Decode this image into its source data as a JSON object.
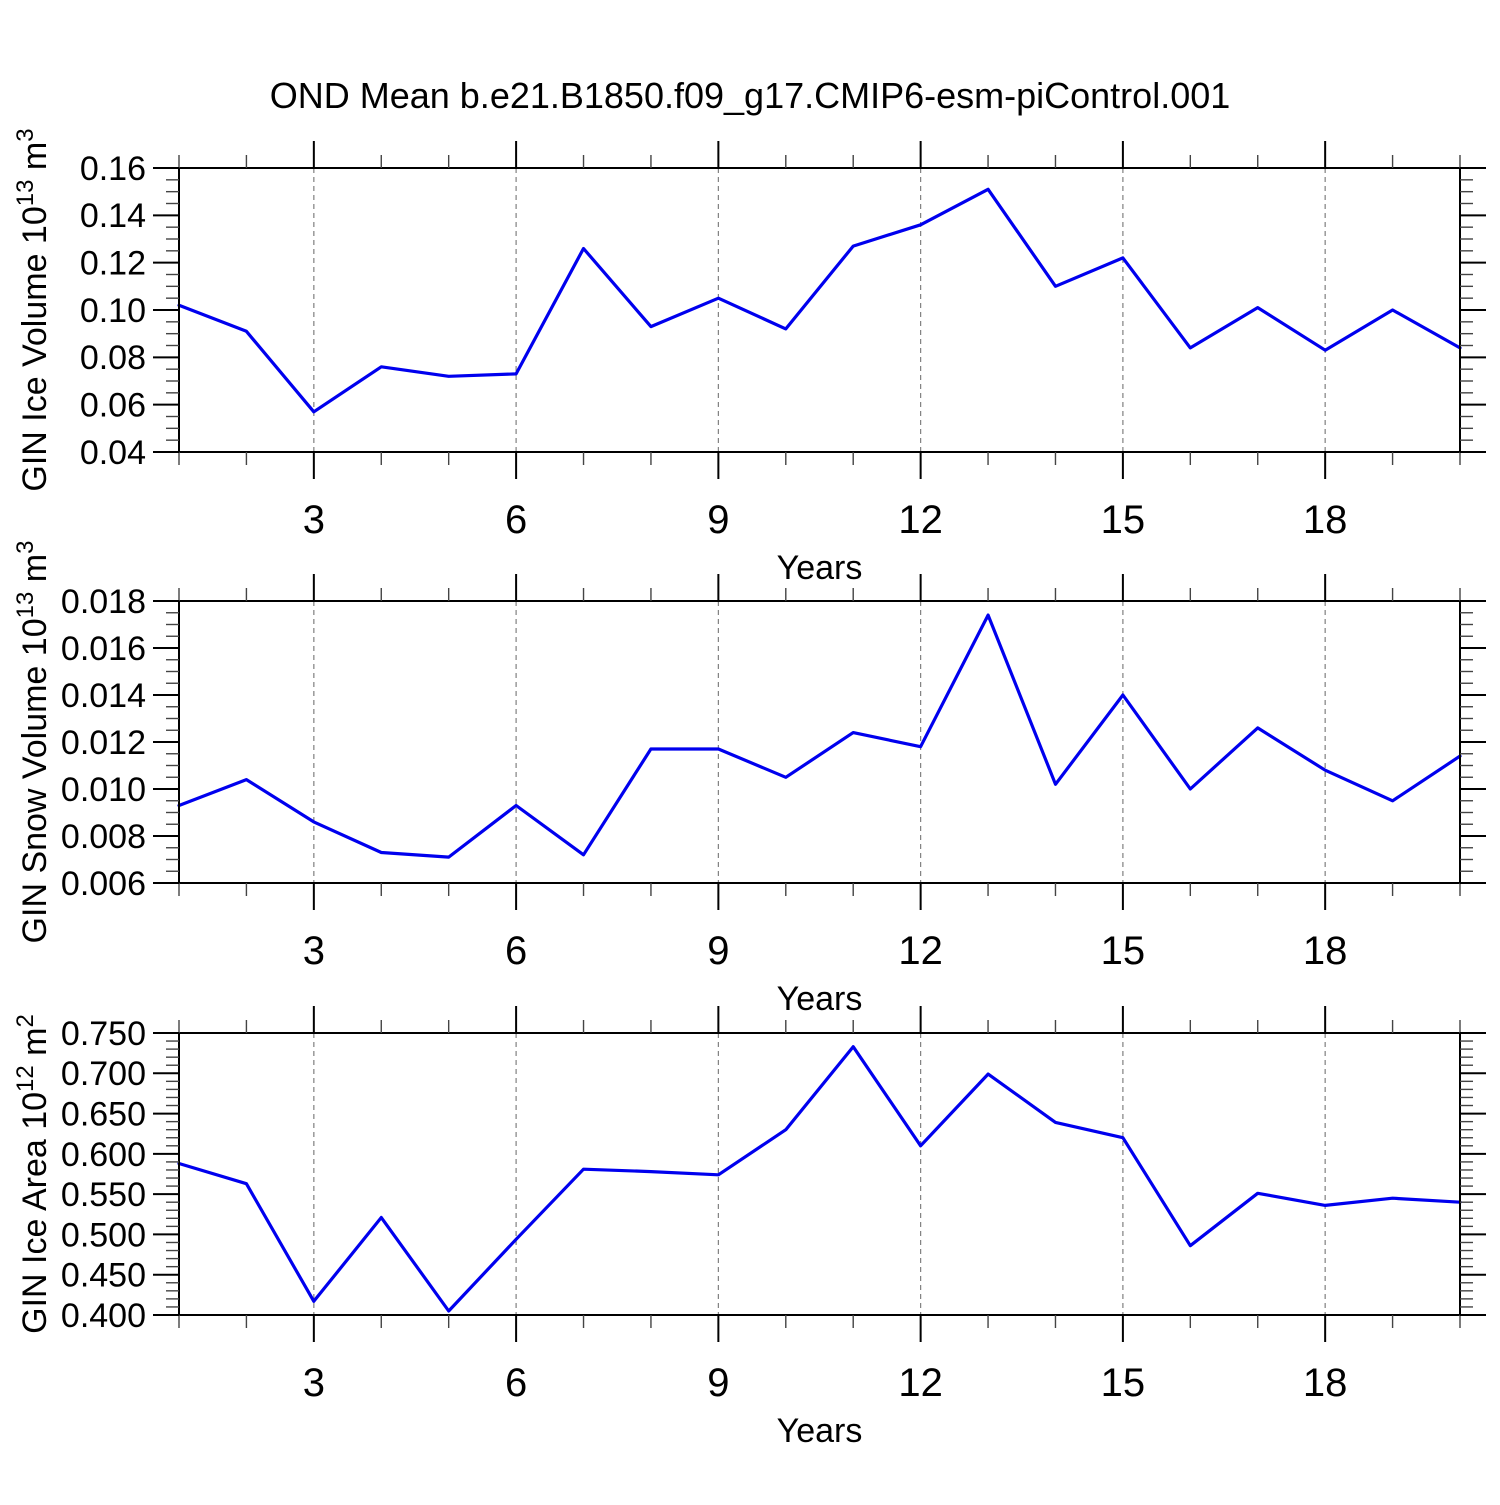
{
  "title": "OND Mean b.e21.B1850.f09_g17.CMIP6-esm-piControl.001",
  "style": {
    "line_color": "#0000ee",
    "grid_color": "#808080",
    "axis_color": "#000000",
    "minor_tick_color": "#444444",
    "background": "#ffffff"
  },
  "chart_data": [
    {
      "type": "line",
      "series_name": "GIN Ice Volume",
      "xlabel": "Years",
      "ylabel": "GIN Ice Volume 10^13 m^3",
      "ylabel_parts": [
        {
          "text": "GIN Ice Volume 10"
        },
        {
          "text": "13",
          "sup": true
        },
        {
          "text": " m"
        },
        {
          "text": "3",
          "sup": true
        }
      ],
      "x": [
        1,
        2,
        3,
        4,
        5,
        6,
        7,
        8,
        9,
        10,
        11,
        12,
        13,
        14,
        15,
        16,
        17,
        18,
        19,
        20
      ],
      "values": [
        0.102,
        0.091,
        0.057,
        0.076,
        0.072,
        0.073,
        0.126,
        0.093,
        0.105,
        0.092,
        0.127,
        0.136,
        0.151,
        0.11,
        0.122,
        0.084,
        0.101,
        0.083,
        0.1,
        0.084
      ],
      "xlim": [
        1,
        20
      ],
      "ylim": [
        0.04,
        0.16
      ],
      "ytick_step": 0.02,
      "yminor_step": 0.005,
      "yticks": [
        {
          "v": 0.16,
          "label": "0.16"
        },
        {
          "v": 0.14,
          "label": "0.14"
        },
        {
          "v": 0.12,
          "label": "0.12"
        },
        {
          "v": 0.1,
          "label": "0.10"
        },
        {
          "v": 0.08,
          "label": "0.08"
        },
        {
          "v": 0.06,
          "label": "0.06"
        },
        {
          "v": 0.04,
          "label": "0.04"
        }
      ],
      "xticks": [
        {
          "v": 3,
          "label": "3"
        },
        {
          "v": 6,
          "label": "6"
        },
        {
          "v": 9,
          "label": "9"
        },
        {
          "v": 12,
          "label": "12"
        },
        {
          "v": 15,
          "label": "15"
        },
        {
          "v": 18,
          "label": "18"
        }
      ],
      "xminor_step": 1,
      "grid": "vertical-dashed-at-major",
      "legend": "none"
    },
    {
      "type": "line",
      "series_name": "GIN Snow Volume",
      "xlabel": "Years",
      "ylabel": "GIN Snow Volume 10^13 m^3",
      "ylabel_parts": [
        {
          "text": "GIN Snow Volume 10"
        },
        {
          "text": "13",
          "sup": true
        },
        {
          "text": " m"
        },
        {
          "text": "3",
          "sup": true
        }
      ],
      "x": [
        1,
        2,
        3,
        4,
        5,
        6,
        7,
        8,
        9,
        10,
        11,
        12,
        13,
        14,
        15,
        16,
        17,
        18,
        19,
        20
      ],
      "values": [
        0.0093,
        0.0104,
        0.0086,
        0.0073,
        0.0071,
        0.0093,
        0.0072,
        0.0117,
        0.0117,
        0.0105,
        0.0124,
        0.0118,
        0.0174,
        0.0102,
        0.014,
        0.01,
        0.0126,
        0.0108,
        0.0095,
        0.0114
      ],
      "xlim": [
        1,
        20
      ],
      "ylim": [
        0.006,
        0.018
      ],
      "ytick_step": 0.002,
      "yminor_step": 0.0005,
      "yticks": [
        {
          "v": 0.018,
          "label": "0.018"
        },
        {
          "v": 0.016,
          "label": "0.016"
        },
        {
          "v": 0.014,
          "label": "0.014"
        },
        {
          "v": 0.012,
          "label": "0.012"
        },
        {
          "v": 0.01,
          "label": "0.010"
        },
        {
          "v": 0.008,
          "label": "0.008"
        },
        {
          "v": 0.006,
          "label": "0.006"
        }
      ],
      "xticks": [
        {
          "v": 3,
          "label": "3"
        },
        {
          "v": 6,
          "label": "6"
        },
        {
          "v": 9,
          "label": "9"
        },
        {
          "v": 12,
          "label": "12"
        },
        {
          "v": 15,
          "label": "15"
        },
        {
          "v": 18,
          "label": "18"
        }
      ],
      "xminor_step": 1,
      "grid": "vertical-dashed-at-major",
      "legend": "none"
    },
    {
      "type": "line",
      "series_name": "GIN Ice Area",
      "xlabel": "Years",
      "ylabel": "GIN Ice Area 10^12 m^2",
      "ylabel_parts": [
        {
          "text": "GIN Ice Area 10"
        },
        {
          "text": "12",
          "sup": true
        },
        {
          "text": " m"
        },
        {
          "text": "2",
          "sup": true
        }
      ],
      "x": [
        1,
        2,
        3,
        4,
        5,
        6,
        7,
        8,
        9,
        10,
        11,
        12,
        13,
        14,
        15,
        16,
        17,
        18,
        19,
        20
      ],
      "values": [
        0.588,
        0.563,
        0.417,
        0.521,
        0.405,
        0.494,
        0.581,
        0.578,
        0.574,
        0.63,
        0.733,
        0.61,
        0.699,
        0.639,
        0.62,
        0.486,
        0.551,
        0.536,
        0.545,
        0.54
      ],
      "xlim": [
        1,
        20
      ],
      "ylim": [
        0.4,
        0.75
      ],
      "ytick_step": 0.05,
      "yminor_step": 0.01,
      "yticks": [
        {
          "v": 0.75,
          "label": "0.750"
        },
        {
          "v": 0.7,
          "label": "0.700"
        },
        {
          "v": 0.65,
          "label": "0.650"
        },
        {
          "v": 0.6,
          "label": "0.600"
        },
        {
          "v": 0.55,
          "label": "0.550"
        },
        {
          "v": 0.5,
          "label": "0.500"
        },
        {
          "v": 0.45,
          "label": "0.450"
        },
        {
          "v": 0.4,
          "label": "0.400"
        }
      ],
      "xticks": [
        {
          "v": 3,
          "label": "3"
        },
        {
          "v": 6,
          "label": "6"
        },
        {
          "v": 9,
          "label": "9"
        },
        {
          "v": 12,
          "label": "12"
        },
        {
          "v": 15,
          "label": "15"
        },
        {
          "v": 18,
          "label": "18"
        }
      ],
      "xminor_step": 1,
      "grid": "vertical-dashed-at-major",
      "legend": "none"
    }
  ]
}
